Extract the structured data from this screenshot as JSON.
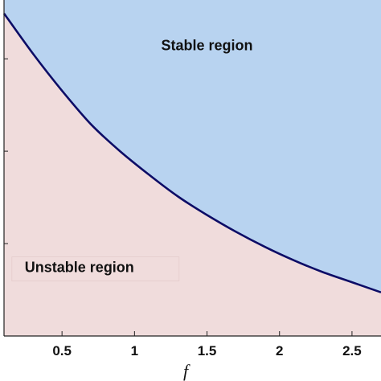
{
  "chart_data": {
    "type": "area",
    "title": "",
    "xlabel": "f",
    "ylabel": "",
    "xlim": [
      0.1,
      2.7
    ],
    "ylim": [
      0,
      1
    ],
    "x_ticks": [
      "0.5",
      "1",
      "1.5",
      "2",
      "2.5"
    ],
    "x_tick_values": [
      0.5,
      1,
      1.5,
      2,
      2.5
    ],
    "y_tick_values": [
      0.275,
      0.55,
      0.825
    ],
    "grid": false,
    "boundary": {
      "x": [
        0.1,
        0.3,
        0.5,
        0.7,
        0.9,
        1.1,
        1.3,
        1.5,
        1.7,
        1.9,
        2.1,
        2.3,
        2.5,
        2.7
      ],
      "y": [
        0.96,
        0.84,
        0.73,
        0.63,
        0.55,
        0.48,
        0.415,
        0.36,
        0.31,
        0.265,
        0.225,
        0.19,
        0.16,
        0.13
      ]
    },
    "regions": [
      {
        "label": "Stable region",
        "side": "above",
        "label_at": [
          1.5,
          0.85
        ]
      },
      {
        "label": "Unstable region",
        "side": "below",
        "label_at": [
          0.62,
          0.19
        ]
      }
    ],
    "colors": {
      "stable": "#b8d3f0",
      "unstable": "#f0dcdc",
      "boundary": "#0c0c66",
      "frame": "#222222"
    }
  }
}
